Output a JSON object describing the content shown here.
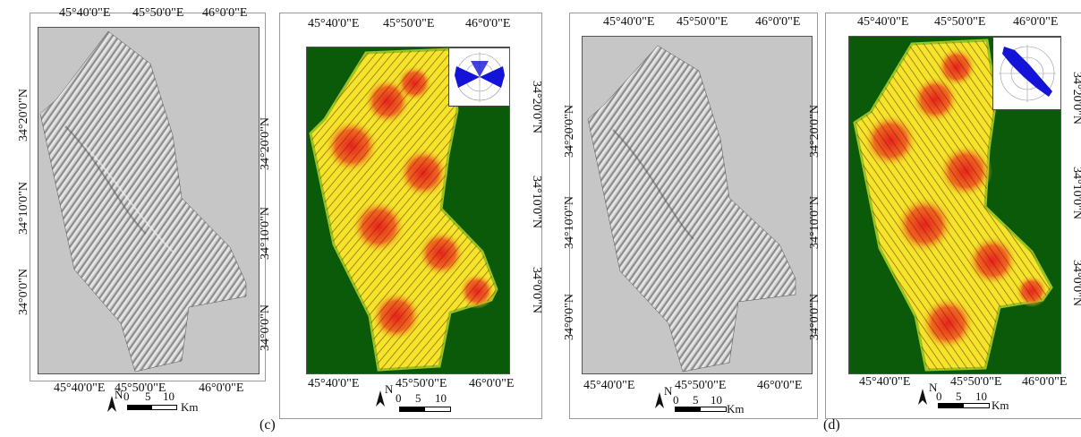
{
  "panels": [
    {
      "id": "a",
      "letter": ""
    },
    {
      "id": "c",
      "letter": "(c)"
    },
    {
      "id": "b",
      "letter": ""
    },
    {
      "id": "d",
      "letter": "(d)"
    }
  ],
  "axes": {
    "lon_labels": [
      "45°40'0\"E",
      "45°50'0\"E",
      "46°0'0\"E"
    ],
    "lat_labels": [
      "34°20'0\"N",
      "34°10'0\"N",
      "34°0'0\"N"
    ]
  },
  "scale_bar": {
    "north": "N",
    "ticks": [
      "0",
      "5",
      "10"
    ],
    "unit": "Km"
  },
  "colors": {
    "hillshade_bg": "#c6c6c6",
    "density_bg": "#0a5a0a",
    "density_high": "#e8231c",
    "density_mid": "#f2e52a",
    "rose_fill": "#1414d8"
  }
}
